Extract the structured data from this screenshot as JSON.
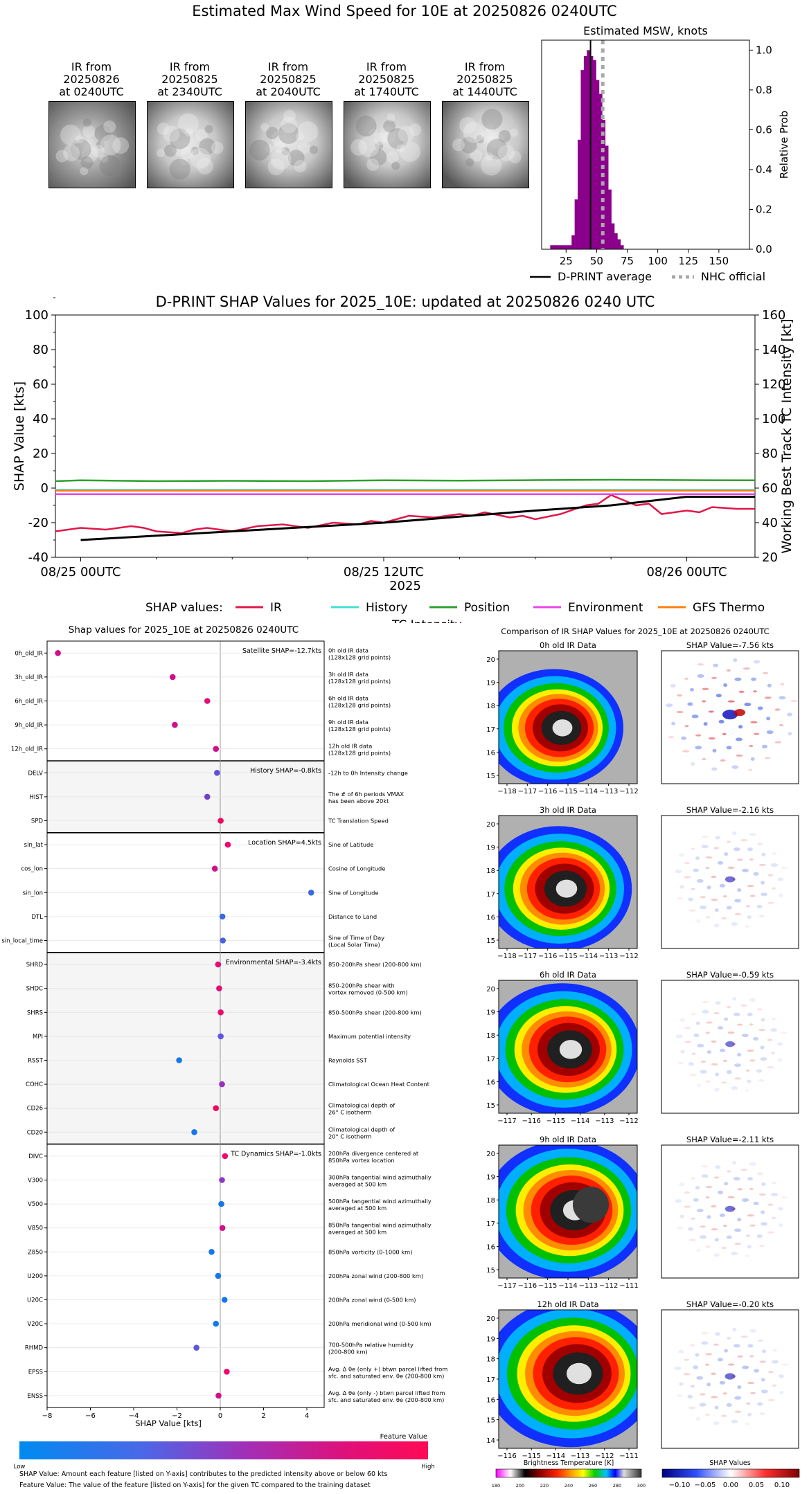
{
  "page_title": "Estimated Max Wind Speed for 10E at 20250826 0240UTC",
  "ir_thumbnails": [
    {
      "line1": "IR from",
      "line2": "20250826",
      "line3": "at 0240UTC"
    },
    {
      "line1": "IR from",
      "line2": "20250825",
      "line3": "at 2340UTC"
    },
    {
      "line1": "IR from",
      "line2": "20250825",
      "line3": "at 2040UTC"
    },
    {
      "line1": "IR from",
      "line2": "20250825",
      "line3": "at 1740UTC"
    },
    {
      "line1": "IR from",
      "line2": "20250825",
      "line3": "at 1440UTC"
    }
  ],
  "chart_data": [
    {
      "type": "bar",
      "title": "Estimated MSW, knots",
      "ylabel": "Relative Prob",
      "xlabel": "",
      "xlim": [
        5,
        175
      ],
      "ylim": [
        0,
        1.05
      ],
      "xticks": [
        25,
        50,
        75,
        100,
        125,
        150
      ],
      "yticks": [
        0.0,
        0.2,
        0.4,
        0.6,
        0.8,
        1.0
      ],
      "bin_width": 2.5,
      "bins": [
        12,
        14.5,
        17,
        19.5,
        22,
        24.5,
        27,
        29.5,
        32,
        34.5,
        37,
        39.5,
        42,
        44.5,
        47,
        49.5,
        52,
        54.5,
        57,
        59.5,
        62,
        64.5,
        67,
        69.5
      ],
      "values": [
        0.02,
        0.02,
        0.02,
        0.02,
        0.02,
        0.02,
        0.02,
        0.07,
        0.25,
        0.55,
        0.9,
        0.97,
        1.0,
        0.97,
        0.95,
        0.85,
        0.78,
        0.65,
        0.52,
        0.3,
        0.13,
        0.08,
        0.05,
        0.02
      ],
      "dprint_average": 45,
      "nhc_official": 55,
      "legend": [
        "D-PRINT average",
        "NHC official"
      ],
      "colors": {
        "bar": "#8b008b",
        "average": "#000000",
        "nhc": "#a9a9a9"
      }
    },
    {
      "type": "line",
      "title": "D-PRINT SHAP Values for 2025_10E: updated at 20250826 0240 UTC",
      "ylabel": "SHAP Value [kts]",
      "y2label": "Working Best Track TC Intensity [kt]",
      "xlabel": "2025",
      "ylim": [
        -40,
        100
      ],
      "y2lim": [
        20,
        160
      ],
      "yticks": [
        -40,
        -20,
        0,
        20,
        40,
        60,
        80,
        100
      ],
      "y2ticks": [
        20,
        40,
        60,
        80,
        100,
        120,
        140,
        160
      ],
      "xticks": [
        "08/25 00UTC",
        "08/25 12UTC",
        "08/26 00UTC"
      ],
      "xlim_hours": [
        -1,
        26.7
      ],
      "xtick_hours": [
        0,
        12,
        24
      ],
      "legend_label": "SHAP values:",
      "series": [
        {
          "name": "IR",
          "color": "#e0184a",
          "x": [
            -1,
            0,
            1,
            2,
            2.5,
            3,
            4,
            4.5,
            5,
            6,
            7,
            8,
            9,
            10,
            11,
            11.5,
            12,
            12.5,
            13,
            14,
            15,
            15.5,
            16,
            17,
            17.5,
            18,
            19,
            20,
            20.5,
            21,
            22,
            22.5,
            23,
            24,
            24.5,
            25,
            26,
            26.7
          ],
          "values": [
            -25,
            -23,
            -24,
            -22,
            -23,
            -25,
            -26,
            -24,
            -23,
            -25,
            -22,
            -21,
            -23,
            -20,
            -21,
            -19,
            -20,
            -18,
            -16,
            -17,
            -15,
            -16,
            -14,
            -17,
            -16,
            -18,
            -15,
            -10,
            -9,
            -4,
            -10,
            -9,
            -15,
            -13,
            -14,
            -11,
            -12,
            -12
          ]
        },
        {
          "name": "History",
          "color": "#40e0d0",
          "x": [
            -1,
            26.7
          ],
          "values": [
            -1,
            -1
          ]
        },
        {
          "name": "Position",
          "color": "#2ca02c",
          "x": [
            -1,
            0,
            3,
            6,
            9,
            12,
            15,
            18,
            21,
            24,
            26.7
          ],
          "values": [
            4,
            4.5,
            4,
            4.2,
            4,
            4.5,
            4.3,
            4.6,
            4.8,
            4.6,
            4.5
          ]
        },
        {
          "name": "Environment",
          "color": "#e844e8",
          "x": [
            -1,
            26.7
          ],
          "values": [
            -3.5,
            -3.5
          ]
        },
        {
          "name": "GFS Thermo",
          "color": "#ff7f0e",
          "x": [
            -1,
            26.7
          ],
          "values": [
            -1.5,
            -1.5
          ]
        },
        {
          "name": "TC Intensity",
          "color": "#000000",
          "axis": "right",
          "x": [
            0,
            6,
            12,
            18,
            21,
            24,
            26.7
          ],
          "values": [
            30,
            35,
            40,
            47,
            50,
            55,
            55
          ]
        }
      ]
    },
    {
      "type": "scatter",
      "title": "Shap values for 2025_10E at 20250826 0240UTC",
      "xlabel": "SHAP Value [kts]",
      "xlim": [
        -8,
        4.8
      ],
      "xticks": [
        -8,
        -6,
        -4,
        -2,
        0,
        2,
        4
      ],
      "colorbar": {
        "title": "Feature Value",
        "low": "Low",
        "high": "High"
      },
      "groups": [
        {
          "label": "Satellite SHAP=-12.7kts",
          "start": 0,
          "count": 5
        },
        {
          "label": "History SHAP=-0.8kts",
          "start": 5,
          "count": 3
        },
        {
          "label": "Location SHAP=4.5kts",
          "start": 8,
          "count": 5
        },
        {
          "label": "Environmental SHAP=-3.4kts",
          "start": 13,
          "count": 8
        },
        {
          "label": "TC Dynamics SHAP=-1.0kts",
          "start": 21,
          "count": 11
        }
      ],
      "features": [
        {
          "name": "0h_old_IR",
          "desc1": "0h old IR data",
          "desc2": "(128x128 grid points)",
          "value": -7.5,
          "color": "#d0108a"
        },
        {
          "name": "3h_old_IR",
          "desc1": "3h old IR data",
          "desc2": "(128x128 grid points)",
          "value": -2.2,
          "color": "#d0108a"
        },
        {
          "name": "6h_old_IR",
          "desc1": "6h old IR data",
          "desc2": "(128x128 grid points)",
          "value": -0.6,
          "color": "#e0107a"
        },
        {
          "name": "9h_old_IR",
          "desc1": "9h old IR data",
          "desc2": "(128x128 grid points)",
          "value": -2.1,
          "color": "#d0108a"
        },
        {
          "name": "12h_old_IR",
          "desc1": "12h old IR data",
          "desc2": "(128x128 grid points)",
          "value": -0.2,
          "color": "#d0108a"
        },
        {
          "name": "DELV",
          "desc1": "-12h to 0h Intensity change",
          "desc2": "",
          "value": -0.15,
          "color": "#6050d8"
        },
        {
          "name": "HIST",
          "desc1": "The # of 6h periods VMAX",
          "desc2": "has been above 20kt",
          "value": -0.6,
          "color": "#7040c8"
        },
        {
          "name": "SPD",
          "desc1": "TC Translation Speed",
          "desc2": "",
          "value": 0.02,
          "color": "#f00860"
        },
        {
          "name": "sin_lat",
          "desc1": "Sine of Latitude",
          "desc2": "",
          "value": 0.35,
          "color": "#f00870"
        },
        {
          "name": "cos_lon",
          "desc1": "Cosine of Longitude",
          "desc2": "",
          "value": -0.25,
          "color": "#d0108a"
        },
        {
          "name": "sin_lon",
          "desc1": "Sine of Longitude",
          "desc2": "",
          "value": 4.2,
          "color": "#3a6ae0"
        },
        {
          "name": "DTL",
          "desc1": "Distance to Land",
          "desc2": "",
          "value": 0.1,
          "color": "#3a6ae0"
        },
        {
          "name": "sin_local_time",
          "desc1": "Sine of Time of Day",
          "desc2": "(Local Solar Time)",
          "value": 0.12,
          "color": "#4a60e0"
        },
        {
          "name": "SHRD",
          "desc1": "850-200hPa shear (200-800 km)",
          "desc2": "",
          "value": -0.1,
          "color": "#e0107a"
        },
        {
          "name": "SHDC",
          "desc1": "850-200hPa shear with",
          "desc2": "vortex removed (0-500 km)",
          "value": -0.05,
          "color": "#e0107a"
        },
        {
          "name": "SHRS",
          "desc1": "850-500hPa shear (200-800 km)",
          "desc2": "",
          "value": 0.02,
          "color": "#f00870"
        },
        {
          "name": "MPI",
          "desc1": "Maximum potential intensity",
          "desc2": "",
          "value": 0.02,
          "color": "#5a58e0"
        },
        {
          "name": "RSST",
          "desc1": "Reynolds SST",
          "desc2": "",
          "value": -1.9,
          "color": "#1478e8"
        },
        {
          "name": "COHC",
          "desc1": "Climatological Ocean Heat Content",
          "desc2": "",
          "value": 0.08,
          "color": "#9a30c0"
        },
        {
          "name": "CD26",
          "desc1": "Climatological depth of",
          "desc2": "26° C isotherm",
          "value": -0.2,
          "color": "#f00860"
        },
        {
          "name": "CD20",
          "desc1": "Climatological depth of",
          "desc2": "20° C isotherm",
          "value": -1.2,
          "color": "#1478e8"
        },
        {
          "name": "DIVC",
          "desc1": "200hPa divergence centered at",
          "desc2": "850hPa vortex location",
          "value": 0.22,
          "color": "#f00870"
        },
        {
          "name": "V300",
          "desc1": "300hPa tangential wind azimuthally",
          "desc2": "averaged at 500 km",
          "value": 0.08,
          "color": "#8a38c8"
        },
        {
          "name": "V500",
          "desc1": "500hPa tangential wind azimuthally",
          "desc2": "averaged at 500 km",
          "value": 0.05,
          "color": "#1478e8"
        },
        {
          "name": "V850",
          "desc1": "850hPa tangential wind azimuthally",
          "desc2": "averaged at 500 km",
          "value": 0.1,
          "color": "#d0108a"
        },
        {
          "name": "Z850",
          "desc1": "850hPa vorticity (0-1000 km)",
          "desc2": "",
          "value": -0.4,
          "color": "#1478e8"
        },
        {
          "name": "U200",
          "desc1": "200hPa zonal wind (200-800 km)",
          "desc2": "",
          "value": -0.1,
          "color": "#1478e8"
        },
        {
          "name": "U20C",
          "desc1": "200hPa zonal wind (0-500 km)",
          "desc2": "",
          "value": 0.2,
          "color": "#1478e8"
        },
        {
          "name": "V20C",
          "desc1": "200hPa meridional wind (0-500 km)",
          "desc2": "",
          "value": -0.2,
          "color": "#1478e8"
        },
        {
          "name": "RHMD",
          "desc1": "700-500hPa relative humidity",
          "desc2": "(200-800 km)",
          "value": -1.1,
          "color": "#5a58d8"
        },
        {
          "name": "EPSS",
          "desc1": "Avg. Δ θe (only +) btwn parcel lifted from",
          "desc2": "sfc. and saturated env. θe (200-800 km)",
          "value": 0.3,
          "color": "#f00870"
        },
        {
          "name": "ENSS",
          "desc1": "Avg. Δ θe (only -) btwn parcel lifted from",
          "desc2": "sfc. and saturated env. θe (200-800 km)",
          "value": -0.08,
          "color": "#d0108a"
        }
      ]
    }
  ],
  "ir_comparison": {
    "title": "Comparison of IR SHAP Values for 2025_10E at 20250826 0240UTC",
    "panels": [
      {
        "ir_title": "0h old IR Data",
        "shap_title": "SHAP Value=-7.56 kts",
        "xticks": [
          "−118",
          "−117",
          "−116",
          "−115",
          "−114",
          "−113",
          "−112"
        ],
        "yticks": [
          "20",
          "19",
          "18",
          "17",
          "16",
          "15"
        ],
        "shap_strength": 1.0
      },
      {
        "ir_title": "3h old IR Data",
        "shap_title": "SHAP Value=-2.16 kts",
        "xticks": [
          "−118",
          "−117",
          "−116",
          "−115",
          "−114",
          "−113",
          "−112"
        ],
        "yticks": [
          "20",
          "19",
          "18",
          "17",
          "16",
          "15"
        ],
        "shap_strength": 0.35
      },
      {
        "ir_title": "6h old IR Data",
        "shap_title": "SHAP Value=-0.59 kts",
        "xticks": [
          "−117",
          "−116",
          "−115",
          "−114",
          "−113",
          "−112"
        ],
        "yticks": [
          "20",
          "19",
          "18",
          "17",
          "16",
          "15"
        ],
        "shap_strength": 0.3
      },
      {
        "ir_title": "9h old IR Data",
        "shap_title": "SHAP Value=-2.11 kts",
        "xticks": [
          "−117",
          "−116",
          "−115",
          "−114",
          "−113",
          "−112",
          "−111"
        ],
        "yticks": [
          "20",
          "19",
          "18",
          "17",
          "16",
          "15"
        ],
        "shap_strength": 0.35
      },
      {
        "ir_title": "12h old IR Data",
        "shap_title": "SHAP Value=-0.20 kts",
        "xticks": [
          "−116",
          "−115",
          "−114",
          "−113",
          "−112",
          "−111"
        ],
        "yticks": [
          "20",
          "19",
          "18",
          "17",
          "16",
          "15",
          "14"
        ],
        "shap_strength": 0.4
      }
    ],
    "bt_colorbar": {
      "title": "Brightness Temperature [K]",
      "ticks": [
        "180",
        "200",
        "220",
        "240",
        "260",
        "280",
        "300"
      ]
    },
    "shap_colorbar": {
      "title": "SHAP Values",
      "ticks": [
        "−0.10",
        "−0.05",
        "0.00",
        "0.05",
        "0.10"
      ]
    }
  },
  "footnotes": {
    "line1": "SHAP Value: Amount each feature [listed on Y-axis] contributes to the predicted intensity above or below 60 kts",
    "line2": "Feature Value: The value of the feature [listed on Y-axis] for the given TC compared to the training dataset"
  }
}
